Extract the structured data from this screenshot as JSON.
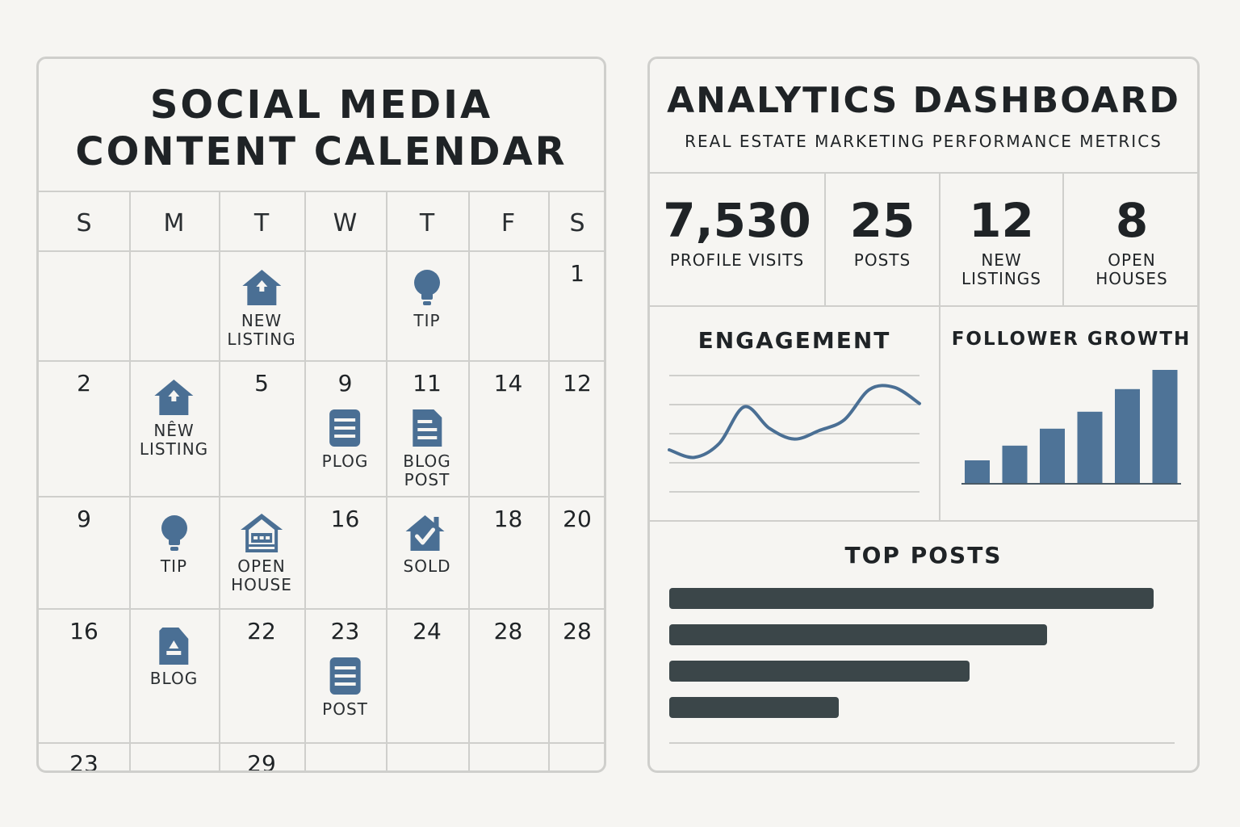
{
  "calendar": {
    "title_line1": "SOCIAL MEDIA",
    "title_line2": "CONTENT CALENDAR",
    "weekdays": [
      "S",
      "M",
      "T",
      "W",
      "T",
      "F",
      "S"
    ],
    "rows": [
      {
        "cells": [
          {
            "day": ""
          },
          {
            "day": ""
          },
          {
            "day": "",
            "event": {
              "icon": "house-icon",
              "label": [
                "NEW",
                "LISTING"
              ]
            }
          },
          {
            "day": ""
          },
          {
            "day": "",
            "event": {
              "icon": "lightbulb-icon",
              "label": [
                "TIP"
              ]
            }
          },
          {
            "day": ""
          },
          {
            "day": "1"
          }
        ]
      },
      {
        "cells": [
          {
            "day": "2"
          },
          {
            "day": "",
            "event": {
              "icon": "house-icon",
              "label": [
                "NÊW",
                "LISTING"
              ]
            }
          },
          {
            "day": "5"
          },
          {
            "day": "9",
            "event": {
              "icon": "document-icon",
              "label": [
                "PLOG"
              ]
            }
          },
          {
            "day": "11",
            "event": {
              "icon": "blog-post-icon",
              "label": [
                "BLOG",
                "POST"
              ]
            }
          },
          {
            "day": "14"
          },
          {
            "day": "12"
          }
        ]
      },
      {
        "cells": [
          {
            "day": "9"
          },
          {
            "day": "",
            "event": {
              "icon": "lightbulb-icon",
              "label": [
                "TIP"
              ]
            }
          },
          {
            "day": "",
            "event": {
              "icon": "open-house-icon",
              "label": [
                "OPEN",
                "HOUSE"
              ]
            }
          },
          {
            "day": "16"
          },
          {
            "day": "",
            "event": {
              "icon": "sold-house-icon",
              "label": [
                "SOLD"
              ]
            }
          },
          {
            "day": "18"
          },
          {
            "day": "20"
          }
        ]
      },
      {
        "cells": [
          {
            "day": "16"
          },
          {
            "day": "",
            "event": {
              "icon": "blog-icon",
              "label": [
                "BLOG"
              ]
            }
          },
          {
            "day": "22"
          },
          {
            "day": "23",
            "event": {
              "icon": "document-icon",
              "label": [
                "POST"
              ]
            }
          },
          {
            "day": "24"
          },
          {
            "day": "28"
          },
          {
            "day": "28"
          }
        ]
      },
      {
        "cells": [
          {
            "day": "23"
          },
          {
            "day": ""
          },
          {
            "day": "29"
          },
          {
            "day": ""
          },
          {
            "day": ""
          },
          {
            "day": ""
          },
          {
            "day": ""
          }
        ]
      }
    ]
  },
  "dashboard": {
    "title": "ANALYTICS DASHBOARD",
    "subtitle": "REAL ESTATE MARKETING PERFORMANCE METRICS",
    "kpis": [
      {
        "value": "7,530",
        "label": [
          "PROFILE VISITS"
        ]
      },
      {
        "value": "25",
        "label": [
          "POSTS"
        ]
      },
      {
        "value": "12",
        "label": [
          "NEW",
          "LISTINGS"
        ]
      },
      {
        "value": "8",
        "label": [
          "OPEN",
          "HOUSES"
        ]
      }
    ],
    "engagement_title": "ENGAGEMENT",
    "follower_title": "FOLLOWER GROWTH",
    "top_posts_title": "TOP POSTS"
  },
  "chart_data": [
    {
      "type": "line",
      "title": "ENGAGEMENT",
      "x": [
        0,
        1,
        2,
        3,
        4,
        5,
        6,
        7,
        8,
        9,
        10
      ],
      "values": [
        0.42,
        0.35,
        0.48,
        0.82,
        0.62,
        0.52,
        0.6,
        0.7,
        0.98,
        1.0,
        0.85
      ],
      "ylim": [
        0,
        1.2
      ],
      "grid": true,
      "color": "#4a6f94"
    },
    {
      "type": "bar",
      "title": "FOLLOWER GROWTH",
      "categories": [
        "",
        "",
        "",
        "",
        "",
        ""
      ],
      "values": [
        20,
        33,
        48,
        63,
        83,
        100
      ],
      "ylim": [
        0,
        100
      ],
      "color": "#4e7397"
    },
    {
      "type": "bar",
      "orientation": "horizontal",
      "title": "TOP POSTS",
      "categories": [
        "",
        "",
        "",
        ""
      ],
      "values": [
        100,
        78,
        62,
        35
      ],
      "xlim": [
        0,
        100
      ],
      "color": "#3b4649"
    }
  ],
  "colors": {
    "accent": "#4a6f94",
    "dark_bar": "#3b4649",
    "grid": "#cfcfcc",
    "background": "#f6f5f2"
  }
}
